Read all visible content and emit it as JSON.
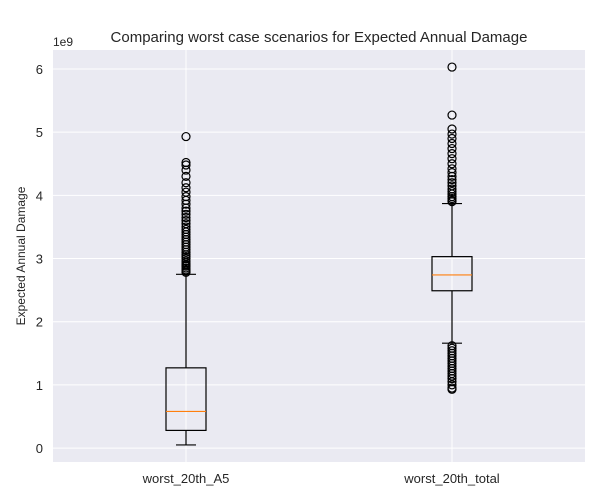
{
  "chart_data": {
    "type": "box",
    "title": "Comparing worst case scenarios for Expected Annual Damage",
    "xlabel": "",
    "ylabel": "Expected Annual Damage",
    "y_scale_label": "1e9",
    "ylim": [
      -0.22,
      6.3
    ],
    "yticks": [
      0,
      1,
      2,
      3,
      4,
      5,
      6
    ],
    "ytick_labels": [
      "0",
      "1",
      "2",
      "3",
      "4",
      "5",
      "6"
    ],
    "grid": true,
    "categories": [
      "worst_20th_A5",
      "worst_20th_total"
    ],
    "boxes": [
      {
        "name": "worst_20th_A5",
        "whisker_low": 0.05,
        "q1": 0.28,
        "median": 0.58,
        "q3": 1.27,
        "whisker_high": 2.75,
        "outliers_high": [
          2.78,
          2.8,
          2.82,
          2.85,
          2.88,
          2.9,
          2.93,
          2.96,
          3.0,
          3.03,
          3.06,
          3.1,
          3.14,
          3.18,
          3.22,
          3.26,
          3.3,
          3.34,
          3.38,
          3.42,
          3.46,
          3.5,
          3.55,
          3.6,
          3.65,
          3.7,
          3.75,
          3.8,
          3.86,
          3.92,
          3.98,
          4.05,
          4.12,
          4.2,
          4.3,
          4.4,
          4.48,
          4.52,
          4.93
        ],
        "outliers_low": []
      },
      {
        "name": "worst_20th_total",
        "whisker_low": 1.66,
        "q1": 2.49,
        "median": 2.74,
        "q3": 3.03,
        "whisker_high": 3.87,
        "outliers_high": [
          3.9,
          3.92,
          3.95,
          3.98,
          4.02,
          4.06,
          4.1,
          4.15,
          4.2,
          4.25,
          4.3,
          4.36,
          4.42,
          4.5,
          4.58,
          4.66,
          4.74,
          4.82,
          4.9,
          4.97,
          5.05,
          5.27,
          6.03
        ],
        "outliers_low": [
          1.62,
          1.58,
          1.54,
          1.5,
          1.46,
          1.42,
          1.38,
          1.34,
          1.3,
          1.26,
          1.22,
          1.18,
          1.14,
          1.1,
          1.05,
          1.0,
          0.95,
          0.93
        ]
      }
    ],
    "colors": {
      "background": "#eaeaf2",
      "grid": "#ffffff",
      "box": "#000000",
      "median": "#ff7f0e",
      "text": "#262626"
    }
  }
}
